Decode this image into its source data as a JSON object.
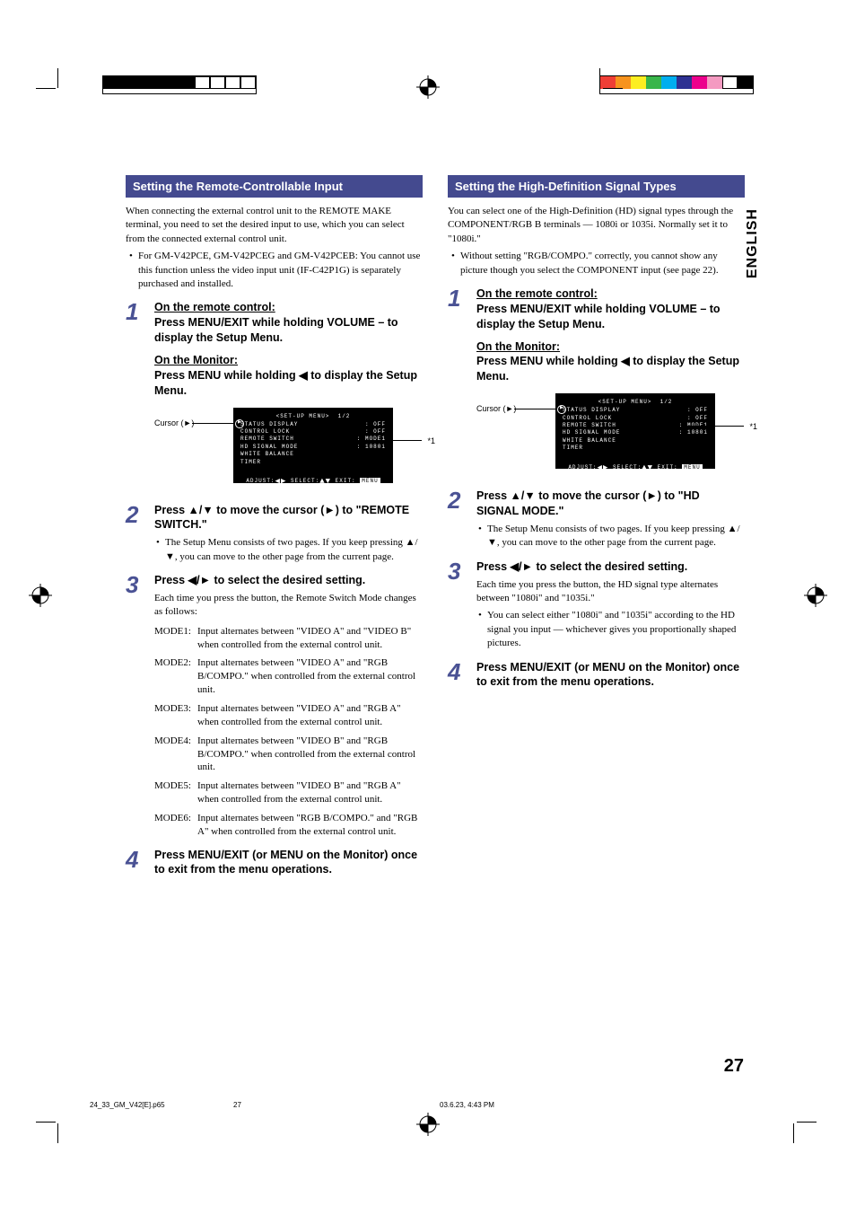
{
  "registration": {
    "left_colors": [
      "#000000",
      "#000000",
      "#000000",
      "#000000",
      "#000000",
      "#000000",
      "#ffffff",
      "#ffffff",
      "#ffffff",
      "#ffffff"
    ],
    "right_colors": [
      "#ef3e36",
      "#f7931e",
      "#fcee21",
      "#39b54a",
      "#00aeef",
      "#2e3192",
      "#ec008c",
      "#f49ac1",
      "#ffffff",
      "#000000"
    ]
  },
  "side_tab": "ENGLISH",
  "page_number": "27",
  "footer": {
    "file": "24_33_GM_V42[E].p65",
    "page": "27",
    "date": "03.6.23, 4:43 PM"
  },
  "symbols": {
    "up": "▲",
    "down": "▼",
    "left": "◀",
    "right": "▶",
    "cursor": "►"
  },
  "menu": {
    "title": "SET-UP MENU",
    "page": "1/2",
    "rows": [
      {
        "label": "STATUS DISPLAY",
        "value": ": OFF"
      },
      {
        "label": "CONTROL LOCK",
        "value": ": OFF"
      },
      {
        "label": "REMOTE SWITCH",
        "value": ": MODE1"
      },
      {
        "label": "HD SIGNAL MODE",
        "value": ": 1080i"
      },
      {
        "label": "WHITE BALANCE",
        "value": ""
      },
      {
        "label": "TIMER",
        "value": ""
      }
    ],
    "footer_adjust": "ADJUST:",
    "footer_select": "SELECT:",
    "footer_exit": "EXIT:",
    "footer_exit_btn": "MENU",
    "cursor_label": "Cursor (►)",
    "star_label": "*1"
  },
  "left": {
    "header": "Setting the Remote-Controllable Input",
    "intro": "When connecting the external control unit to the REMOTE MAKE terminal, you need to set the desired input to use, which you can select from the connected external control unit.",
    "bullet": "For GM-V42PCE, GM-V42PCEG and GM-V42PCEB: You cannot use this function unless the video input unit (IF-C42P1G) is separately purchased and installed.",
    "step1_remote_u": "On the remote control:",
    "step1_remote": "Press MENU/EXIT while holding VOLUME – to display the Setup Menu.",
    "step1_monitor_u": "On the Monitor:",
    "step1_monitor": "Press MENU while holding ◀ to display the Setup Menu.",
    "step2_title": "Press ▲/▼ to move the cursor (►) to \"REMOTE SWITCH.\"",
    "step2_bullet": "The Setup Menu consists of two pages. If you keep pressing ▲/▼, you can move to the other page from the current page.",
    "step3_title": "Press ◀/► to select the desired setting.",
    "step3_sub": "Each time you press the button, the Remote Switch Mode changes as follows:",
    "modes": [
      {
        "k": "MODE1:",
        "v": "Input alternates between \"VIDEO A\" and \"VIDEO B\" when controlled from the external control unit."
      },
      {
        "k": "MODE2:",
        "v": "Input alternates between \"VIDEO A\" and \"RGB B/COMPO.\" when controlled from the external control unit."
      },
      {
        "k": "MODE3:",
        "v": "Input alternates between \"VIDEO A\" and \"RGB A\" when controlled from the external control unit."
      },
      {
        "k": "MODE4:",
        "v": "Input alternates between \"VIDEO B\" and \"RGB B/COMPO.\" when controlled from the external control unit."
      },
      {
        "k": "MODE5:",
        "v": "Input alternates between \"VIDEO B\" and \"RGB A\" when controlled from the external control unit."
      },
      {
        "k": "MODE6:",
        "v": "Input alternates between \"RGB B/COMPO.\" and \"RGB A\" when controlled from the external control unit."
      }
    ],
    "step4_title": "Press MENU/EXIT (or MENU on the Monitor) once to exit from the menu operations."
  },
  "right": {
    "header": "Setting the High-Definition Signal Types",
    "intro": "You can select one of the High-Definition (HD) signal types through the COMPONENT/RGB B terminals — 1080i or 1035i. Normally set it to \"1080i.\"",
    "bullet": "Without setting \"RGB/COMPO.\" correctly, you cannot show any picture though you select the COMPONENT input (see page 22).",
    "step1_remote_u": "On the remote control:",
    "step1_remote": "Press MENU/EXIT while holding VOLUME – to display the Setup Menu.",
    "step1_monitor_u": "On the Monitor:",
    "step1_monitor": "Press MENU while holding ◀ to display the Setup Menu.",
    "step2_title": "Press ▲/▼ to move the cursor (►) to \"HD SIGNAL MODE.\"",
    "step2_bullet": "The Setup Menu consists of two pages. If you keep pressing ▲/▼, you can move to the other page from the current page.",
    "step3_title": "Press ◀/► to select the desired setting.",
    "step3_sub": "Each time you press the button, the HD signal type alternates between \"1080i\" and \"1035i.\"",
    "step3_bullet": "You can select either \"1080i\" and \"1035i\" according to the HD signal you input — whichever gives you proportionally shaped pictures.",
    "step4_title": "Press MENU/EXIT (or MENU on the Monitor) once to exit from the menu operations."
  }
}
